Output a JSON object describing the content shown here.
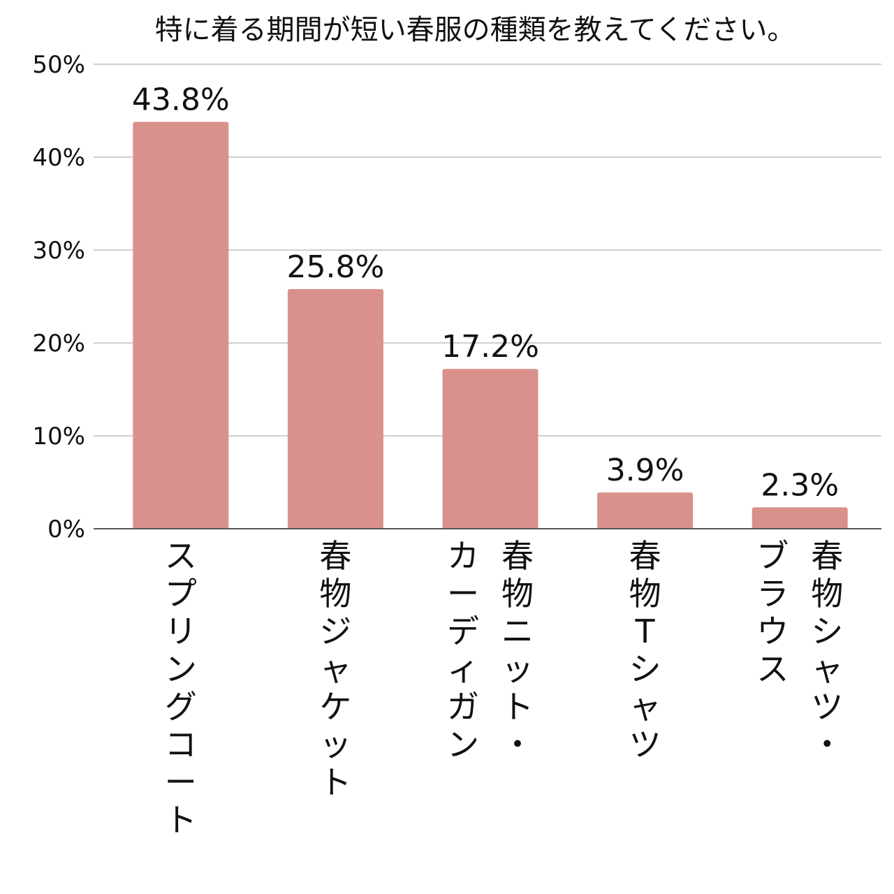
{
  "chart_data": {
    "type": "bar",
    "title": "特に着る期間が短い春服の種類を教えてください。",
    "xlabel": "",
    "ylabel": "",
    "ylim": [
      0,
      50
    ],
    "y_ticks": [
      "0%",
      "10%",
      "20%",
      "30%",
      "40%",
      "50%"
    ],
    "y_tick_values": [
      0,
      10,
      20,
      30,
      40,
      50
    ],
    "grid": true,
    "legend": "none",
    "bar_color": "#d9918c",
    "categories": [
      "スプリングコート",
      "春物ジャケット",
      "春物ニット・カーディガン",
      "春物Tシャツ",
      "春物シャツ・ブラウス"
    ],
    "category_columns": [
      [
        "スプリングコート"
      ],
      [
        "春物ジャケット"
      ],
      [
        "春物ニット・",
        "カーディガン"
      ],
      [
        "春物Tシャツ"
      ],
      [
        "春物シャツ・",
        "ブラウス"
      ]
    ],
    "values": [
      43.8,
      25.8,
      17.2,
      3.9,
      2.3
    ],
    "data_labels": [
      "43.8%",
      "25.8%",
      "17.2%",
      "3.9%",
      "2.3%"
    ]
  }
}
